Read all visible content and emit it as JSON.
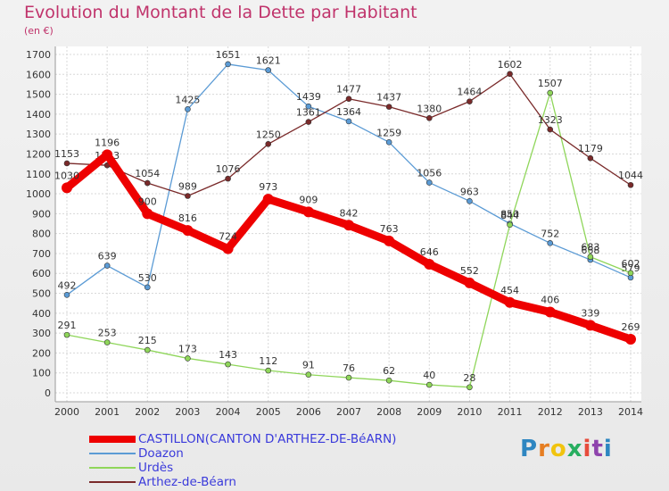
{
  "chart_data": {
    "type": "line",
    "title": "Evolution du Montant de la Dette par Habitant",
    "subtitle": "(en €)",
    "x": [
      "2000",
      "2001",
      "2002",
      "2003",
      "2004",
      "2005",
      "2006",
      "2007",
      "2008",
      "2009",
      "2010",
      "2011",
      "2012",
      "2013",
      "2014"
    ],
    "ylim": [
      0,
      1700
    ],
    "yticks": [
      0,
      100,
      200,
      300,
      400,
      500,
      600,
      700,
      800,
      900,
      1000,
      1100,
      1200,
      1300,
      1400,
      1500,
      1600,
      1700
    ],
    "grid": true,
    "legend_position": "bottom-left",
    "series": [
      {
        "name": "CASTILLON(CANTON D'ARTHEZ-DE-BéARN)",
        "color": "#ee0000",
        "values": [
          1030,
          1196,
          900,
          816,
          724,
          973,
          909,
          842,
          763,
          646,
          552,
          454,
          406,
          339,
          269
        ]
      },
      {
        "name": "Doazon",
        "color": "#5b9bd5",
        "values": [
          492,
          639,
          530,
          1425,
          1651,
          1621,
          1439,
          1364,
          1259,
          1056,
          963,
          850,
          752,
          668,
          579
        ]
      },
      {
        "name": "Urdès",
        "color": "#8fd65a",
        "values": [
          291,
          253,
          215,
          173,
          143,
          112,
          91,
          76,
          62,
          40,
          28,
          844,
          1507,
          683,
          602
        ]
      },
      {
        "name": "Arthez-de-Béarn",
        "color": "#7a2a2a",
        "values": [
          1153,
          1143,
          1054,
          989,
          1076,
          1250,
          1361,
          1477,
          1437,
          1380,
          1464,
          1602,
          1323,
          1179,
          1044
        ]
      }
    ]
  },
  "logo": {
    "letters": [
      "P",
      "r",
      "o",
      "x",
      "i",
      "t",
      "i"
    ],
    "colors": [
      "#2e86c1",
      "#e67e22",
      "#f1c40f",
      "#27ae60",
      "#e74c3c",
      "#8e44ad",
      "#2e86c1"
    ]
  }
}
